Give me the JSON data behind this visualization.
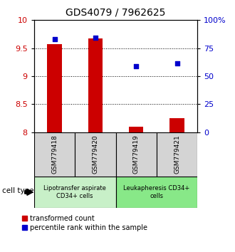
{
  "title": "GDS4079 / 7962625",
  "samples": [
    "GSM779418",
    "GSM779420",
    "GSM779419",
    "GSM779421"
  ],
  "bar_values": [
    9.57,
    9.68,
    8.1,
    8.25
  ],
  "scatter_values": [
    83.0,
    84.5,
    59.0,
    61.5
  ],
  "ylim_left": [
    8.0,
    10.0
  ],
  "ylim_right": [
    0,
    100
  ],
  "yticks_left": [
    8.0,
    8.5,
    9.0,
    9.5,
    10.0
  ],
  "yticks_right": [
    0,
    25,
    50,
    75,
    100
  ],
  "ytick_labels_left": [
    "8",
    "8.5",
    "9",
    "9.5",
    "10"
  ],
  "ytick_labels_right": [
    "0",
    "25",
    "50",
    "75",
    "100%"
  ],
  "bar_color": "#cc0000",
  "scatter_color": "#0000cc",
  "bar_width": 0.35,
  "group1_label": "Lipotransfer aspirate\nCD34+ cells",
  "group2_label": "Leukapheresis CD34+\ncells",
  "group1_color": "#c8f0c8",
  "group2_color": "#88e888",
  "sample_box_color": "#d4d4d4",
  "legend_bar_label": "transformed count",
  "legend_scatter_label": "percentile rank within the sample",
  "cell_type_label": "cell type",
  "bg_color": "#ffffff"
}
